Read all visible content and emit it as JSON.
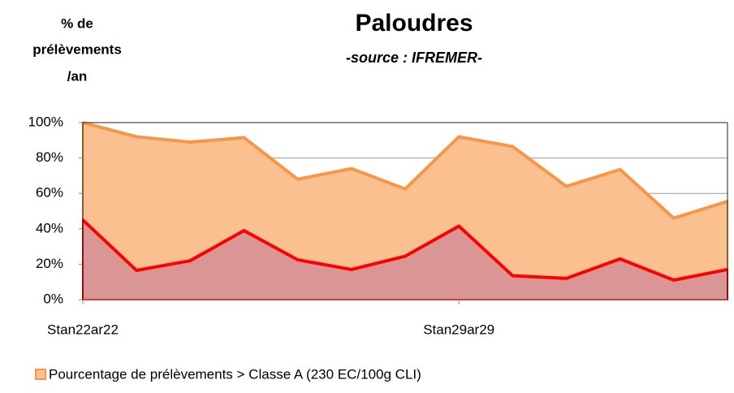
{
  "chart_data": {
    "type": "area",
    "title": "Paloudres",
    "subtitle": "-source : IFREMER-",
    "ylabel": [
      "% de",
      "prélèvements",
      "/an"
    ],
    "categories": [
      "Stan22ar22",
      null,
      null,
      null,
      null,
      null,
      null,
      "Stan29ar29",
      null,
      null,
      null,
      null,
      null
    ],
    "series": [
      {
        "name": "Pourcentage de prélèvements > Classe A (230 EC/100g CLI)",
        "color": "#f79646",
        "fill": "#fac090",
        "values": [
          100,
          92,
          89,
          91.5,
          68,
          74,
          62.5,
          92,
          86.5,
          64,
          73.5,
          46,
          55.5
        ]
      },
      {
        "color": "#ff0000",
        "fill": "#d99694",
        "values": [
          45,
          16.5,
          22,
          39,
          22.5,
          17,
          24.5,
          41.5,
          13.5,
          12,
          23,
          11,
          17
        ]
      }
    ],
    "ylim": [
      0,
      100
    ],
    "yticks": [
      {
        "value": 0,
        "label": "0%"
      },
      {
        "value": 20,
        "label": "20%"
      },
      {
        "value": 40,
        "label": "40%"
      },
      {
        "value": 60,
        "label": "60%"
      },
      {
        "value": 80,
        "label": "80%"
      },
      {
        "value": 100,
        "label": "100%"
      }
    ],
    "grid": true
  }
}
